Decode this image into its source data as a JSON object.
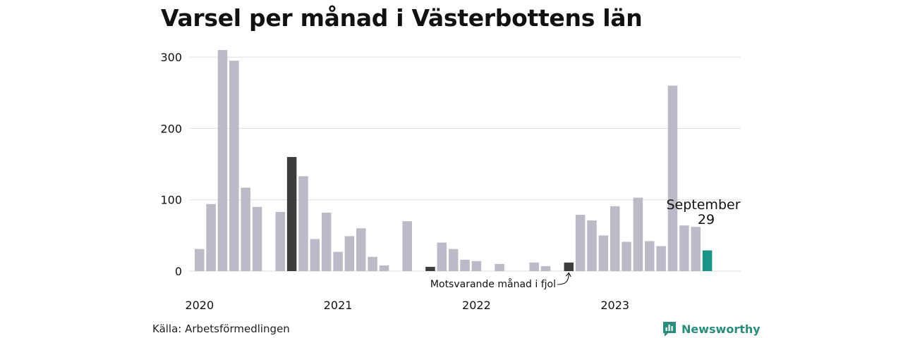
{
  "title": "Varsel per månad i Västerbottens län",
  "source": "Källa: Arbetsförmedlingen",
  "brand": {
    "name": "Newsworthy",
    "icon": "newsworthy-logo-icon",
    "color": "#2a8c7e"
  },
  "colors": {
    "default": "#bcbac7",
    "highlight_prev": "#3d3d3d",
    "current": "#1a9486",
    "grid": "#dddddd"
  },
  "chart_data": {
    "type": "bar",
    "title": "Varsel per månad i Västerbottens län",
    "xlabel": "",
    "ylabel": "",
    "ylim": [
      0,
      320
    ],
    "yticks": [
      0,
      100,
      200,
      300
    ],
    "year_labels": [
      {
        "label": "2020",
        "start_index": 0
      },
      {
        "label": "2021",
        "start_index": 12
      },
      {
        "label": "2022",
        "start_index": 24
      },
      {
        "label": "2023",
        "start_index": 36
      }
    ],
    "categories": [
      "2020-01",
      "2020-02",
      "2020-03",
      "2020-04",
      "2020-05",
      "2020-06",
      "2020-07",
      "2020-08",
      "2020-09",
      "2020-10",
      "2020-11",
      "2020-12",
      "2021-01",
      "2021-02",
      "2021-03",
      "2021-04",
      "2021-05",
      "2021-06",
      "2021-07",
      "2021-08",
      "2021-09",
      "2021-10",
      "2021-11",
      "2021-12",
      "2022-01",
      "2022-02",
      "2022-03",
      "2022-04",
      "2022-05",
      "2022-06",
      "2022-07",
      "2022-08",
      "2022-09",
      "2022-10",
      "2022-11",
      "2022-12",
      "2023-01",
      "2023-02",
      "2023-03",
      "2023-04",
      "2023-05",
      "2023-06",
      "2023-07",
      "2023-08",
      "2023-09"
    ],
    "values": [
      31,
      94,
      310,
      295,
      117,
      90,
      0,
      83,
      160,
      133,
      45,
      82,
      27,
      49,
      60,
      20,
      8,
      0,
      70,
      0,
      6,
      40,
      31,
      16,
      14,
      0,
      10,
      0,
      0,
      12,
      7,
      0,
      12,
      79,
      71,
      50,
      91,
      41,
      103,
      42,
      35,
      260,
      64,
      62,
      29
    ],
    "highlight_prev_indices": [
      8,
      20,
      32
    ],
    "current_index": 44,
    "current_label": {
      "month": "September",
      "value": "29"
    },
    "annotation": "Motsvarande månad i fjol",
    "grid": true,
    "legend": "none"
  }
}
